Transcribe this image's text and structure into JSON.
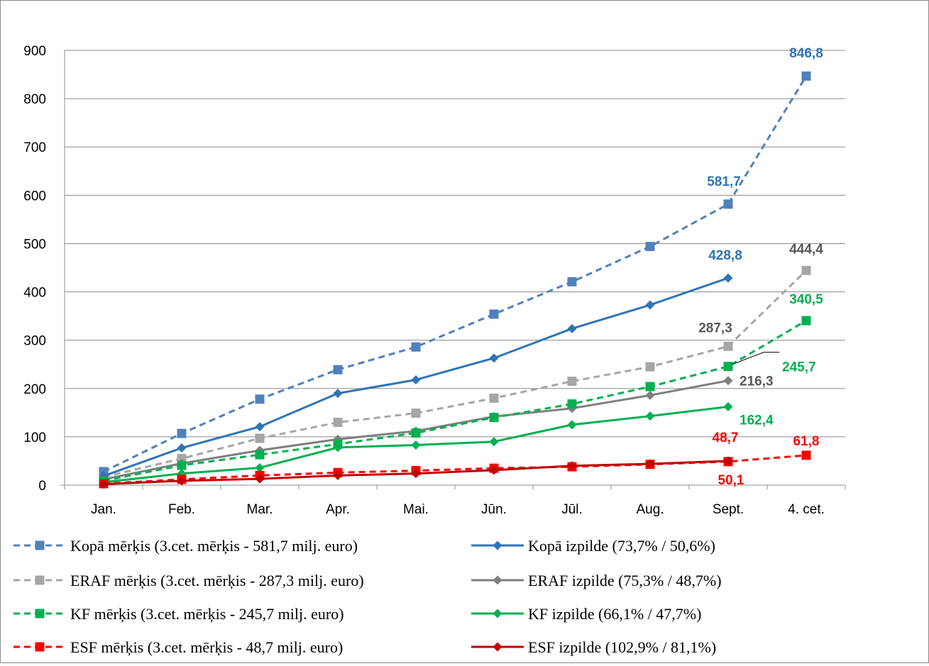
{
  "chart_data": {
    "type": "line",
    "categories": [
      "Jan.",
      "Feb.",
      "Mar.",
      "Apr.",
      "Mai.",
      "Jūn.",
      "Jūl.",
      "Aug.",
      "Sept.",
      "4. cet."
    ],
    "ylim": [
      0,
      900
    ],
    "yticks": [
      "0",
      "100",
      "200",
      "300",
      "400",
      "500",
      "600",
      "700",
      "800",
      "900"
    ],
    "grid": true,
    "legend_position": "bottom",
    "series": [
      {
        "name": "Kopā mērķis (3.cet. mērķis - 581,7 milj. euro)",
        "color": "#4f81bd",
        "dashed": true,
        "marker": "square",
        "values": [
          28,
          107,
          178,
          239,
          286,
          354,
          421,
          494,
          581.7,
          846.8
        ]
      },
      {
        "name": "Kopā izpilde (73,7% / 50,6%)",
        "color": "#2e75b6",
        "dashed": false,
        "marker": "diamond",
        "values": [
          19,
          77,
          121,
          190,
          218,
          263,
          324,
          373,
          428.8,
          null
        ]
      },
      {
        "name": "ERAF mērķis (3.cet. mērķis - 287,3 milj. euro)",
        "color": "#a6a6a6",
        "dashed": true,
        "marker": "square",
        "values": [
          17,
          55,
          97,
          130,
          149,
          180,
          215,
          245,
          287.3,
          444.4
        ]
      },
      {
        "name": "ERAF izpilde (75,3% / 48,7%)",
        "color": "#7f7f7f",
        "dashed": false,
        "marker": "diamond",
        "values": [
          12,
          45,
          72,
          95,
          112,
          142,
          159,
          186,
          216.3,
          null
        ]
      },
      {
        "name": "KF mērķis (3.cet. mērķis - 245,7 milj. euro)",
        "color": "#00b050",
        "dashed": true,
        "marker": "square",
        "values": [
          9,
          41,
          63,
          85,
          108,
          140,
          168,
          204,
          245.7,
          340.5
        ]
      },
      {
        "name": "KF izpilde (66,1% / 47,7%)",
        "color": "#00b050",
        "dashed": false,
        "marker": "diamond",
        "values": [
          6,
          24,
          36,
          78,
          83,
          90,
          125,
          143,
          162.4,
          null
        ]
      },
      {
        "name": "ESF mērķis (3.cet. mērķis - 48,7 milj. euro)",
        "color": "#ff0000",
        "dashed": true,
        "marker": "square",
        "values": [
          3,
          12,
          20,
          26,
          30,
          35,
          38,
          43,
          48.7,
          61.8
        ]
      },
      {
        "name": "ESF izpilde (102,9% / 81,1%)",
        "color": "#c00000",
        "dashed": false,
        "marker": "diamond",
        "values": [
          2,
          9,
          13,
          20,
          24,
          31,
          40,
          44,
          50.1,
          null
        ]
      }
    ],
    "data_labels": [
      {
        "series": 0,
        "index": 9,
        "text": "846,8",
        "color": "#2e75b6"
      },
      {
        "series": 0,
        "index": 8,
        "text": "581,7",
        "color": "#2e75b6"
      },
      {
        "series": 1,
        "index": 8,
        "text": "428,8",
        "color": "#2e75b6"
      },
      {
        "series": 2,
        "index": 9,
        "text": "444,4",
        "color": "#595959"
      },
      {
        "series": 2,
        "index": 8,
        "text": "287,3",
        "color": "#595959"
      },
      {
        "series": 3,
        "index": 8,
        "text": "216,3",
        "color": "#595959"
      },
      {
        "series": 4,
        "index": 9,
        "text": "340,5",
        "color": "#00b050"
      },
      {
        "series": 4,
        "index": 8,
        "text": "245,7",
        "color": "#00b050"
      },
      {
        "series": 5,
        "index": 8,
        "text": "162,4",
        "color": "#00b050"
      },
      {
        "series": 6,
        "index": 8,
        "text": "48,7",
        "color": "#ff0000"
      },
      {
        "series": 6,
        "index": 9,
        "text": "61,8",
        "color": "#ff0000"
      },
      {
        "series": 7,
        "index": 8,
        "text": "50,1",
        "color": "#ff0000"
      }
    ]
  }
}
